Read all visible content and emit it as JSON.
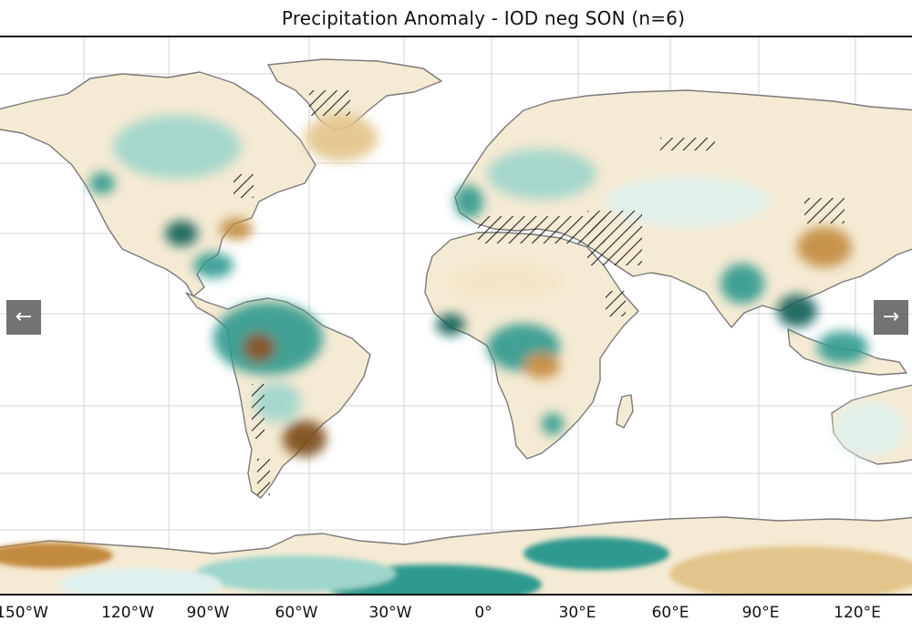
{
  "map": {
    "title": "Precipitation Anomaly - IOD neg SON (n=6)",
    "x_ticks": [
      "150°W",
      "120°W",
      "90°W",
      "60°W",
      "30°W",
      "0°",
      "30°E",
      "60°E",
      "90°E",
      "120°E"
    ],
    "colors": {
      "wet_dark": "#0f5e57",
      "wet_mid": "#2e9a8e",
      "wet_light": "#9fd6cc",
      "wet_faint": "#dff1ee",
      "dry_faint": "#f3e6c8",
      "dry_light": "#e3c48a",
      "dry_mid": "#c28a3c",
      "dry_dark": "#7a4a18",
      "coast": "#7a7a7a",
      "grid": "#d0d0d0",
      "hatch": "#111111"
    }
  },
  "controls": {
    "prev_icon": "←",
    "next_icon": "→"
  }
}
